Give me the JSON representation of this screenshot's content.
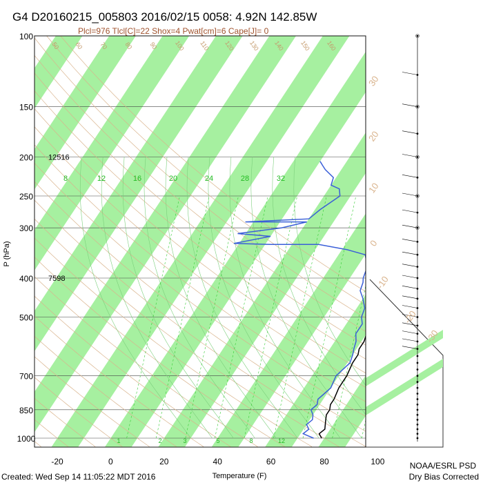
{
  "header": {
    "title": "G4 D20160215_005803 2016/02/15 0058:  4.92N 142.85W",
    "subtitle": "Plcl=976 Tlcl[C]=22 Shox=4 Pwat[cm]=6 Cape[J]= 0"
  },
  "footer": {
    "created": "Created: Wed Sep 14 11:05:22 MDT 2016",
    "org": "NOAA/ESRL PSD",
    "note": "Dry Bias Corrected"
  },
  "chart_data": {
    "type": "line",
    "title": "G4 D20160215_005803 2016/02/15 0058:  4.92N 142.85W",
    "xlabel": "Temperature (F)",
    "ylabel": "P (hPa)",
    "log_scale_y": true,
    "xlim": [
      -30,
      110
    ],
    "ylim": [
      1000,
      100
    ],
    "x_ticks": [
      "-20",
      "0",
      "20",
      "40",
      "60",
      "80",
      "100"
    ],
    "y_ticks": [
      "100",
      "150",
      "200",
      "250",
      "300",
      "400",
      "500",
      "700",
      "850",
      "1000"
    ],
    "height_labels": [
      {
        "pressure": 200,
        "text": "12516"
      },
      {
        "pressure": 400,
        "text": "7598"
      }
    ],
    "mixing_ratio_labels_top": [
      "8",
      "12",
      "16",
      "20",
      "24",
      "28",
      "32"
    ],
    "mixing_ratio_labels_bottom": [
      "1",
      "2",
      "3",
      "5",
      "8",
      "12"
    ],
    "dry_adiabat_labels": [
      "50",
      "60",
      "70",
      "80",
      "90",
      "100",
      "110",
      "120",
      "130",
      "140",
      "150",
      "160"
    ],
    "right_axis_labels": [
      "30",
      "20",
      "10",
      "0",
      "-10",
      "-20",
      "-30"
    ],
    "series": [
      {
        "name": "Temperature",
        "color": "#000000",
        "points": [
          [
            79,
            1000
          ],
          [
            77,
            975
          ],
          [
            78,
            950
          ],
          [
            77,
            925
          ],
          [
            76,
            900
          ],
          [
            75,
            875
          ],
          [
            75,
            850
          ],
          [
            74,
            825
          ],
          [
            74,
            800
          ],
          [
            73,
            750
          ],
          [
            73,
            700
          ],
          [
            72,
            650
          ],
          [
            72,
            620
          ],
          [
            71,
            600
          ],
          [
            71,
            575
          ],
          [
            70,
            550
          ],
          [
            69,
            520
          ],
          [
            69,
            500
          ],
          [
            68,
            475
          ],
          [
            67,
            450
          ],
          [
            66,
            430
          ],
          [
            65,
            410
          ],
          [
            63,
            400
          ],
          [
            62,
            380
          ],
          [
            61,
            370
          ],
          [
            60,
            350
          ],
          [
            59,
            330
          ],
          [
            58,
            320
          ],
          [
            57,
            300
          ],
          [
            56,
            280
          ],
          [
            54,
            260
          ],
          [
            52,
            250
          ],
          [
            50,
            235
          ],
          [
            48,
            225
          ],
          [
            46,
            215
          ],
          [
            44,
            205
          ],
          [
            42,
            200
          ],
          [
            41,
            195
          ],
          [
            39,
            188
          ],
          [
            37,
            182
          ],
          [
            35,
            180
          ]
        ]
      },
      {
        "name": "Dewpoint",
        "color": "#3a5fd8",
        "points": [
          [
            76,
            1000
          ],
          [
            73,
            985
          ],
          [
            71,
            975
          ],
          [
            72,
            950
          ],
          [
            70,
            925
          ],
          [
            71,
            900
          ],
          [
            70,
            875
          ],
          [
            68,
            850
          ],
          [
            69,
            825
          ],
          [
            68,
            800
          ],
          [
            69,
            775
          ],
          [
            70,
            750
          ],
          [
            69,
            700
          ],
          [
            71,
            650
          ],
          [
            70,
            620
          ],
          [
            69,
            600
          ],
          [
            68,
            575
          ],
          [
            66,
            550
          ],
          [
            66,
            520
          ],
          [
            64,
            500
          ],
          [
            63,
            475
          ],
          [
            60,
            450
          ],
          [
            57,
            430
          ],
          [
            56,
            410
          ],
          [
            55,
            400
          ],
          [
            54,
            380
          ],
          [
            53,
            370
          ],
          [
            50,
            350
          ],
          [
            42,
            340
          ],
          [
            30,
            330
          ],
          [
            12,
            330
          ],
          [
            -2,
            328
          ],
          [
            10,
            315
          ],
          [
            -3,
            310
          ],
          [
            12,
            300
          ],
          [
            20,
            290
          ],
          [
            -3,
            290
          ],
          [
            20,
            285
          ],
          [
            22,
            270
          ],
          [
            26,
            250
          ],
          [
            24,
            240
          ],
          [
            20,
            235
          ],
          [
            19,
            225
          ],
          [
            14,
            215
          ],
          [
            12,
            210
          ],
          [
            10,
            205
          ]
        ]
      }
    ]
  }
}
